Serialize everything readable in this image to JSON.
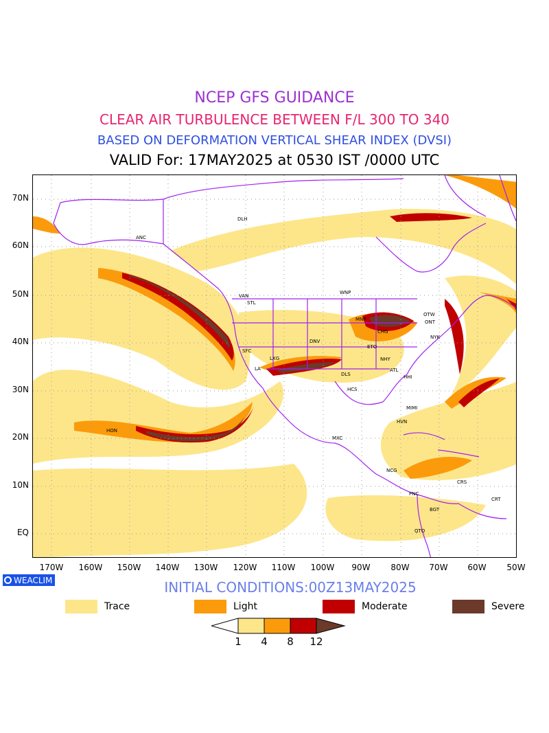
{
  "title": {
    "line1": "NCEP GFS GUIDANCE",
    "line2": "CLEAR AIR TURBULENCE BETWEEN F/L 300 TO 340",
    "line3": "BASED ON DEFORMATION VERTICAL SHEAR INDEX (DVSI)",
    "line4": "VALID For: 17MAY2025 at 0530 IST /0000 UTC"
  },
  "colors": {
    "line1": "#9b30d0",
    "line2": "#e8246e",
    "line3": "#2f4fe0",
    "line4": "#000000",
    "coast": "#a020f0",
    "trace": "#fde68a",
    "light": "#fb9b0b",
    "moderate": "#c00000",
    "severe": "#6b3a2a",
    "badge": "#1a52e6",
    "init": "#6a7fe8"
  },
  "axes": {
    "lat_labels": [
      "70N",
      "60N",
      "50N",
      "40N",
      "30N",
      "20N",
      "10N",
      "EQ"
    ],
    "lon_labels": [
      "170W",
      "160W",
      "150W",
      "140W",
      "130W",
      "120W",
      "110W",
      "100W",
      "90W",
      "80W",
      "70W",
      "60W",
      "50W"
    ]
  },
  "stations": [
    "ANC",
    "DLH",
    "VAN",
    "STL",
    "WNP",
    "MNP",
    "CHG",
    "ETO",
    "ONT",
    "OTW",
    "NYK",
    "SFC",
    "LA",
    "LXG",
    "DNV",
    "NHY",
    "ATL",
    "HHI",
    "DLS",
    "HCS",
    "MIMI",
    "HVN",
    "HON",
    "MXC",
    "NCG",
    "PNC",
    "CRS",
    "CRT",
    "BGT",
    "QTO"
  ],
  "badge": "WEACLIM",
  "initial_conditions": "INITIAL CONDITIONS:00Z13MAY2025",
  "legend": {
    "trace": "Trace",
    "light": "Light",
    "moderate": "Moderate",
    "severe": "Severe"
  },
  "colorbar_labels": [
    "1",
    "4",
    "8",
    "12"
  ]
}
